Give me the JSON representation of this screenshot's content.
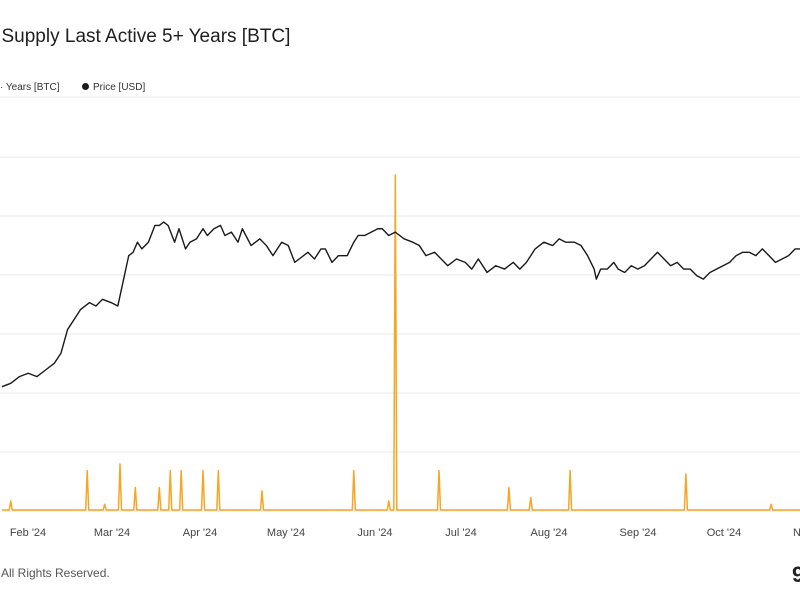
{
  "header": {
    "title": "l Supply Last Active 5+ Years [BTC]"
  },
  "legend": {
    "supply_label": "· Years [BTC]",
    "price_label": "Price [USD]"
  },
  "footer": {
    "rights": "All Rights Reserved.",
    "brand_glyph": "9"
  },
  "colors": {
    "price_line": "#1a1a1a",
    "supply_line": "#f5a623",
    "grid": "#e8e8e8"
  },
  "chart_data": {
    "type": "line",
    "title": "l Supply Last Active 5+ Years [BTC]",
    "xlabel": "",
    "ylabel": "",
    "x_tick_labels": [
      "Feb '24",
      "Mar '24",
      "Apr '24",
      "May '24",
      "Jun '24",
      "Jul '24",
      "Aug '24",
      "Sep '24",
      "Oct '24",
      "N"
    ],
    "y_scale_note": "no y-axis tick labels visible; values are relative levels (0 = baseline, 100 = chart top)",
    "series": [
      {
        "name": "Price [USD]",
        "color": "#1a1a1a",
        "points": [
          [
            0.0,
            37
          ],
          [
            2.0,
            38
          ],
          [
            4.0,
            40
          ],
          [
            6.0,
            41
          ],
          [
            8.0,
            40
          ],
          [
            10.0,
            42
          ],
          [
            12.0,
            44
          ],
          [
            13.5,
            47
          ],
          [
            15.0,
            54
          ],
          [
            16.5,
            57
          ],
          [
            18.0,
            60
          ],
          [
            20.0,
            62
          ],
          [
            21.5,
            61
          ],
          [
            23.0,
            63
          ],
          [
            25.0,
            62
          ],
          [
            26.5,
            61
          ],
          [
            28.0,
            70
          ],
          [
            29.0,
            76
          ],
          [
            30.0,
            77
          ],
          [
            31.0,
            80
          ],
          [
            32.0,
            78
          ],
          [
            33.5,
            80
          ],
          [
            35.0,
            85
          ],
          [
            36.0,
            85
          ],
          [
            37.0,
            86
          ],
          [
            38.0,
            85
          ],
          [
            39.5,
            80
          ],
          [
            40.5,
            84
          ],
          [
            42.0,
            78
          ],
          [
            43.0,
            80
          ],
          [
            44.5,
            81
          ],
          [
            46.0,
            84
          ],
          [
            47.0,
            82
          ],
          [
            48.5,
            84
          ],
          [
            50.0,
            85
          ],
          [
            51.0,
            82
          ],
          [
            52.5,
            83
          ],
          [
            54.0,
            80
          ],
          [
            55.0,
            84
          ],
          [
            57.0,
            79
          ],
          [
            59.0,
            81
          ],
          [
            60.5,
            79
          ],
          [
            62.0,
            76
          ],
          [
            64.0,
            80
          ],
          [
            65.5,
            79
          ],
          [
            67.0,
            74
          ],
          [
            68.0,
            75
          ],
          [
            70.0,
            77
          ],
          [
            71.5,
            75
          ],
          [
            73.0,
            78
          ],
          [
            74.0,
            78
          ],
          [
            75.5,
            74
          ],
          [
            77.0,
            76
          ],
          [
            79.0,
            76
          ],
          [
            80.5,
            80
          ],
          [
            81.5,
            82
          ],
          [
            83.0,
            82
          ],
          [
            84.5,
            83
          ],
          [
            86.0,
            84
          ],
          [
            87.0,
            84
          ],
          [
            88.5,
            82
          ],
          [
            90.0,
            83
          ],
          [
            92.0,
            81
          ],
          [
            94.0,
            80
          ],
          [
            95.5,
            79
          ],
          [
            97.0,
            76
          ],
          [
            99.0,
            77
          ],
          [
            100.5,
            75
          ],
          [
            102.0,
            73
          ],
          [
            104.0,
            75
          ],
          [
            106.0,
            74
          ],
          [
            107.5,
            72
          ],
          [
            109.0,
            75
          ],
          [
            111.0,
            71
          ],
          [
            113.0,
            73
          ],
          [
            115.0,
            72
          ],
          [
            117.0,
            74
          ],
          [
            118.5,
            72
          ],
          [
            120.0,
            74
          ],
          [
            122.0,
            78
          ],
          [
            124.0,
            80
          ],
          [
            126.0,
            79
          ],
          [
            127.5,
            81
          ],
          [
            129.0,
            80
          ],
          [
            131.0,
            80
          ],
          [
            132.5,
            79
          ],
          [
            134.0,
            76
          ],
          [
            135.5,
            72
          ],
          [
            136.0,
            69
          ],
          [
            137.0,
            72
          ],
          [
            138.5,
            72
          ],
          [
            140.0,
            74
          ],
          [
            141.0,
            72
          ],
          [
            142.5,
            71
          ],
          [
            144.0,
            73
          ],
          [
            145.5,
            72
          ],
          [
            147.0,
            73
          ],
          [
            148.5,
            75
          ],
          [
            150.0,
            77
          ],
          [
            151.5,
            75
          ],
          [
            153.0,
            73
          ],
          [
            154.5,
            74
          ],
          [
            156.0,
            72
          ],
          [
            157.5,
            72
          ],
          [
            159.0,
            70
          ],
          [
            160.5,
            69
          ],
          [
            162.0,
            71
          ],
          [
            163.5,
            72
          ],
          [
            165.0,
            73
          ],
          [
            166.5,
            74
          ],
          [
            168.0,
            76
          ],
          [
            169.5,
            77
          ],
          [
            171.0,
            77
          ],
          [
            172.5,
            76
          ],
          [
            174.0,
            78
          ],
          [
            175.5,
            76
          ],
          [
            177.0,
            74
          ],
          [
            178.5,
            75
          ],
          [
            180.0,
            76
          ],
          [
            181.5,
            78
          ],
          [
            183.0,
            78
          ],
          [
            184.5,
            77
          ],
          [
            186.0,
            79
          ],
          [
            187.5,
            81
          ],
          [
            189.0,
            81
          ],
          [
            190.5,
            82
          ],
          [
            192.0,
            81
          ],
          [
            193.5,
            80
          ],
          [
            195.0,
            81
          ],
          [
            196.5,
            82
          ],
          [
            198.0,
            81
          ],
          [
            200.0,
            83
          ]
        ]
      },
      {
        "name": "Supply Last Active 5+ Years [BTC]",
        "color": "#f5a623",
        "baseline": 0,
        "spikes": [
          [
            2.0,
            3
          ],
          [
            19.5,
            12
          ],
          [
            23.5,
            2
          ],
          [
            27.0,
            14
          ],
          [
            30.5,
            7
          ],
          [
            36.0,
            7
          ],
          [
            38.5,
            12
          ],
          [
            41.0,
            12
          ],
          [
            46.0,
            12
          ],
          [
            49.5,
            12
          ],
          [
            59.5,
            6
          ],
          [
            80.5,
            12
          ],
          [
            88.5,
            3
          ],
          [
            90.0,
            100
          ],
          [
            100.0,
            12
          ],
          [
            116.0,
            7
          ],
          [
            121.0,
            4
          ],
          [
            130.0,
            12
          ],
          [
            156.5,
            11
          ],
          [
            176.0,
            2
          ],
          [
            197.0,
            1
          ]
        ]
      }
    ],
    "grid": true,
    "legend_position": "top-left"
  }
}
